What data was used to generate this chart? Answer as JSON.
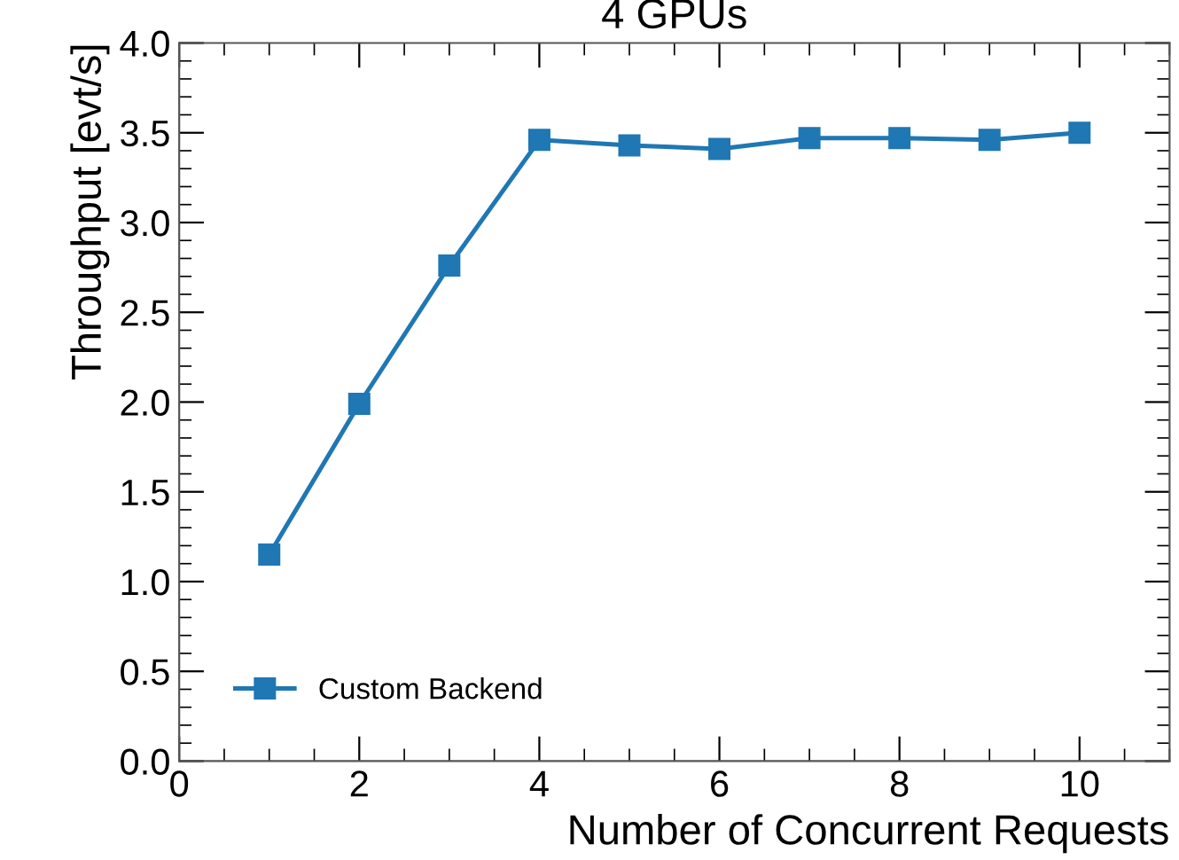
{
  "chart_data": {
    "type": "line",
    "title": "4 GPUs",
    "xlabel": "Number of Concurrent Requests",
    "ylabel": "Throughput [evt/s]",
    "x": [
      1,
      2,
      3,
      4,
      5,
      6,
      7,
      8,
      9,
      10
    ],
    "series": [
      {
        "name": "Custom Backend",
        "color": "#1f77b4",
        "values": [
          1.15,
          1.99,
          2.76,
          3.46,
          3.43,
          3.41,
          3.47,
          3.47,
          3.46,
          3.5
        ]
      }
    ],
    "xlim": [
      0,
      11
    ],
    "xticks": [
      0,
      2,
      4,
      6,
      8,
      10
    ],
    "ylim": [
      0,
      4
    ],
    "yticks": [
      {
        "value": 0,
        "label": "0.0"
      },
      0.5,
      {
        "value": 1,
        "label": "1.0"
      },
      1.5,
      {
        "value": 2,
        "label": "2.0"
      },
      2.5,
      {
        "value": 3,
        "label": "3.0"
      },
      3.5,
      {
        "value": 4,
        "label": "4.0"
      }
    ],
    "grid": false,
    "legend": "bottom left",
    "marker": "square",
    "line_style": "solid"
  }
}
